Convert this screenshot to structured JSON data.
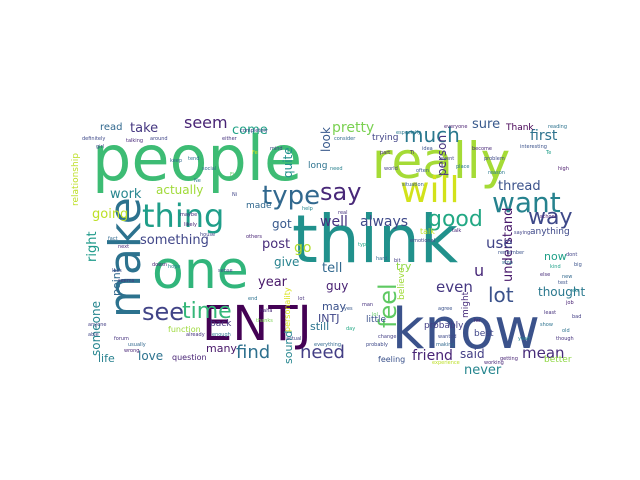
{
  "cloud": {
    "words": [
      {
        "text": "people",
        "color": "#3dbc74"
      },
      {
        "text": "really",
        "color": "#a5db36"
      },
      {
        "text": "think",
        "color": "#21918c"
      },
      {
        "text": "one",
        "color": "#31b57b"
      },
      {
        "text": "make",
        "color": "#2c728e"
      },
      {
        "text": "know",
        "color": "#3b528b"
      },
      {
        "text": "ENTJ",
        "color": "#440154"
      },
      {
        "text": "will",
        "color": "#d2e21b"
      },
      {
        "text": "thing",
        "color": "#1f9e89"
      },
      {
        "text": "type",
        "color": "#31688e"
      },
      {
        "text": "say",
        "color": "#482878"
      },
      {
        "text": "want",
        "color": "#26828e"
      },
      {
        "text": "time",
        "color": "#35b779"
      },
      {
        "text": "see",
        "color": "#414487"
      },
      {
        "text": "feel",
        "color": "#5ec962"
      },
      {
        "text": "much",
        "color": "#2a788e"
      },
      {
        "text": "good",
        "color": "#22a884"
      },
      {
        "text": "way",
        "color": "#3e4989"
      },
      {
        "text": "find",
        "color": "#2d708e"
      },
      {
        "text": "need",
        "color": "#433e85"
      },
      {
        "text": "lot",
        "color": "#3b528b"
      },
      {
        "text": "seem",
        "color": "#482475"
      },
      {
        "text": "take",
        "color": "#453781"
      },
      {
        "text": "read",
        "color": "#31688e"
      },
      {
        "text": "come",
        "color": "#20a386"
      },
      {
        "text": "pretty",
        "color": "#7ad151"
      },
      {
        "text": "sure",
        "color": "#38598c"
      },
      {
        "text": "first",
        "color": "#2c728e"
      },
      {
        "text": "work",
        "color": "#25858e"
      },
      {
        "text": "actually",
        "color": "#a0da39"
      },
      {
        "text": "going",
        "color": "#bddf26"
      },
      {
        "text": "right",
        "color": "#1f9a8a"
      },
      {
        "text": "something",
        "color": "#404688"
      },
      {
        "text": "post",
        "color": "#472c7a"
      },
      {
        "text": "year",
        "color": "#48186a"
      },
      {
        "text": "always",
        "color": "#3e4989"
      },
      {
        "text": "well",
        "color": "#46327e"
      },
      {
        "text": "got",
        "color": "#38598c"
      },
      {
        "text": "go",
        "color": "#b5de2b"
      },
      {
        "text": "give",
        "color": "#26828e"
      },
      {
        "text": "tell",
        "color": "#31688e"
      },
      {
        "text": "guy",
        "color": "#482173"
      },
      {
        "text": "may",
        "color": "#3b528b"
      },
      {
        "text": "INTJ",
        "color": "#404688"
      },
      {
        "text": "still",
        "color": "#2c728e"
      },
      {
        "text": "even",
        "color": "#453781"
      },
      {
        "text": "friend",
        "color": "#482475"
      },
      {
        "text": "said",
        "color": "#433e85"
      },
      {
        "text": "never",
        "color": "#25858e"
      },
      {
        "text": "mean",
        "color": "#472c7a"
      },
      {
        "text": "thought",
        "color": "#2a788e"
      },
      {
        "text": "understand",
        "color": "#48186a"
      },
      {
        "text": "use",
        "color": "#414487"
      },
      {
        "text": "u",
        "color": "#482878"
      },
      {
        "text": "thread",
        "color": "#3b528b"
      },
      {
        "text": "person",
        "color": "#46327e"
      },
      {
        "text": "look",
        "color": "#38598c"
      },
      {
        "text": "quite",
        "color": "#21918c"
      },
      {
        "text": "made",
        "color": "#31688e"
      },
      {
        "text": "someone",
        "color": "#25858e"
      },
      {
        "text": "point",
        "color": "#31688e"
      },
      {
        "text": "love",
        "color": "#2c728e"
      },
      {
        "text": "life",
        "color": "#27808e"
      },
      {
        "text": "many",
        "color": "#48186a"
      },
      {
        "text": "sound",
        "color": "#25858e"
      },
      {
        "text": "try",
        "color": "#8fd744"
      },
      {
        "text": "little",
        "color": "#3b528b"
      },
      {
        "text": "believe",
        "color": "#a0da39"
      },
      {
        "text": "probably",
        "color": "#433e85"
      },
      {
        "text": "best",
        "color": "#404688"
      },
      {
        "text": "might",
        "color": "#472c7a"
      },
      {
        "text": "now",
        "color": "#1fa088"
      },
      {
        "text": "anything",
        "color": "#3e4989"
      },
      {
        "text": "trying",
        "color": "#414487"
      },
      {
        "text": "Thank",
        "color": "#440154"
      },
      {
        "text": "long",
        "color": "#2c728e"
      },
      {
        "text": "back",
        "color": "#46327e"
      },
      {
        "text": "question",
        "color": "#482475"
      },
      {
        "text": "feeling",
        "color": "#3b528b"
      },
      {
        "text": "talk",
        "color": "#c0df25"
      },
      {
        "text": "function",
        "color": "#9dd93b"
      },
      {
        "text": "better",
        "color": "#8fd744"
      },
      {
        "text": "relationship",
        "color": "#bddf26"
      },
      {
        "text": "personality",
        "color": "#d8e219"
      },
      {
        "text": "definitely",
        "color": "#3e4989"
      },
      {
        "text": "talking",
        "color": "#482878"
      },
      {
        "text": "around",
        "color": "#404688"
      },
      {
        "text": "either",
        "color": "#46327e"
      },
      {
        "text": "completely",
        "color": "#414487"
      },
      {
        "text": "everyone",
        "color": "#481f70"
      },
      {
        "text": "reading",
        "color": "#2c728e"
      },
      {
        "text": "high",
        "color": "#48186a"
      },
      {
        "text": "interesting",
        "color": "#3b528b"
      },
      {
        "text": "social",
        "color": "#31688e"
      },
      {
        "text": "need",
        "color": "#27808e"
      },
      {
        "text": "though",
        "color": "#46327e"
      },
      {
        "text": "experience",
        "color": "#bddf26"
      },
      {
        "text": "working",
        "color": "#482878"
      },
      {
        "text": "agree",
        "color": "#3b528b"
      },
      {
        "text": "change",
        "color": "#433e85"
      },
      {
        "text": "already",
        "color": "#46327e"
      },
      {
        "text": "enough",
        "color": "#2c728e"
      },
      {
        "text": "usually",
        "color": "#31688e"
      },
      {
        "text": "others",
        "color": "#482475"
      },
      {
        "text": "Fe",
        "color": "#d2e21b"
      },
      {
        "text": "Fi",
        "color": "#5ec962"
      },
      {
        "text": "Ne",
        "color": "#2a788e"
      },
      {
        "text": "Ni",
        "color": "#404688"
      },
      {
        "text": "Te",
        "color": "#1f9e89"
      },
      {
        "text": "Ti",
        "color": "#482878"
      },
      {
        "text": "girl",
        "color": "#3e4989"
      },
      {
        "text": "keep",
        "color": "#31688e"
      },
      {
        "text": "tend",
        "color": "#2c728e"
      },
      {
        "text": "part",
        "color": "#472c7a"
      },
      {
        "text": "help",
        "color": "#25858e"
      },
      {
        "text": "real",
        "color": "#46327e"
      },
      {
        "text": "type",
        "color": "#20a386"
      },
      {
        "text": "school",
        "color": "#482173"
      },
      {
        "text": "idea",
        "color": "#3b528b"
      },
      {
        "text": "event",
        "color": "#404688"
      },
      {
        "text": "place",
        "color": "#2a788e"
      },
      {
        "text": "hard",
        "color": "#31688e"
      },
      {
        "text": "bit",
        "color": "#433e85"
      },
      {
        "text": "lol",
        "color": "#5ec962"
      },
      {
        "text": "yes",
        "color": "#38598c"
      },
      {
        "text": "day",
        "color": "#22a884"
      },
      {
        "text": "man",
        "color": "#46327e"
      },
      {
        "text": "far",
        "color": "#482475"
      },
      {
        "text": "end",
        "color": "#2c728e"
      },
      {
        "text": "haha",
        "color": "#482878"
      },
      {
        "text": "saying",
        "color": "#414487"
      },
      {
        "text": "wanted",
        "color": "#3e4989"
      },
      {
        "text": "making",
        "color": "#31688e"
      },
      {
        "text": "doesn",
        "color": "#482475"
      },
      {
        "text": "hope",
        "color": "#25858e"
      },
      {
        "text": "sense",
        "color": "#404688"
      },
      {
        "text": "kind",
        "color": "#1fa088"
      },
      {
        "text": "else",
        "color": "#472c7a"
      },
      {
        "text": "test",
        "color": "#3b528b"
      },
      {
        "text": "least",
        "color": "#46327e"
      },
      {
        "text": "show",
        "color": "#2c728e"
      },
      {
        "text": "world",
        "color": "#433e85"
      },
      {
        "text": "often",
        "color": "#38598c"
      },
      {
        "text": "actual",
        "color": "#404688"
      },
      {
        "text": "consider",
        "color": "#31688e"
      },
      {
        "text": "become",
        "color": "#482878"
      },
      {
        "text": "problem",
        "color": "#3e4989"
      },
      {
        "text": "reason",
        "color": "#2a788e"
      },
      {
        "text": "forum",
        "color": "#46327e"
      },
      {
        "text": "wrong",
        "color": "#482475"
      },
      {
        "text": "dont",
        "color": "#414487"
      },
      {
        "text": "big",
        "color": "#3b528b"
      },
      {
        "text": "new",
        "color": "#31688e"
      },
      {
        "text": "etc",
        "color": "#25858e"
      },
      {
        "text": "job",
        "color": "#482173"
      },
      {
        "text": "bad",
        "color": "#433e85"
      },
      {
        "text": "old",
        "color": "#2c728e"
      },
      {
        "text": "lot",
        "color": "#46327e"
      },
      {
        "text": "thanks",
        "color": "#7ad151"
      },
      {
        "text": "talk",
        "color": "#482878"
      },
      {
        "text": "emotional",
        "color": "#404688"
      },
      {
        "text": "probably",
        "color": "#3e4989"
      },
      {
        "text": "everything",
        "color": "#31688e"
      },
      {
        "text": "situation",
        "color": "#38598c"
      },
      {
        "text": "especially",
        "color": "#2a788e"
      },
      {
        "text": "maybe",
        "color": "#46327e"
      },
      {
        "text": "likely",
        "color": "#482475"
      },
      {
        "text": "house",
        "color": "#414487"
      },
      {
        "text": "remember",
        "color": "#3b528b"
      },
      {
        "text": "stop",
        "color": "#2c728e"
      },
      {
        "text": "anyone",
        "color": "#433e85"
      },
      {
        "text": "able",
        "color": "#404688"
      },
      {
        "text": "fact",
        "color": "#31688e"
      },
      {
        "text": "next",
        "color": "#482878"
      },
      {
        "text": "less",
        "color": "#3e4989"
      },
      {
        "text": "seems",
        "color": "#46327e"
      },
      {
        "text": "yeah",
        "color": "#25858e"
      },
      {
        "text": "getting",
        "color": "#482475"
      },
      {
        "text": "mind",
        "color": "#414487"
      }
    ]
  }
}
